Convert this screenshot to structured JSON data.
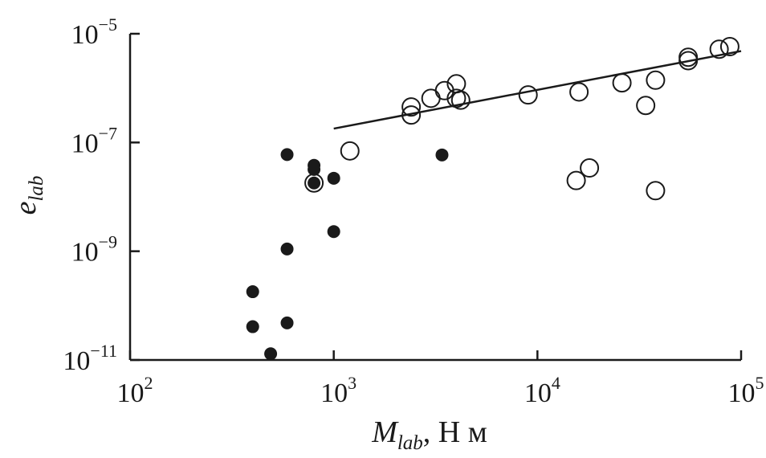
{
  "chart_data": {
    "type": "scatter",
    "title": "",
    "xlabel": {
      "base": "M",
      "sub": "lab",
      "suffix": ", Н м"
    },
    "ylabel": {
      "base": "e",
      "sub": "lab"
    },
    "x_scale": "log",
    "y_scale": "log",
    "xlim": [
      100,
      100000
    ],
    "ylim": [
      1e-11,
      1e-05
    ],
    "x_ticks": [
      {
        "value": 100,
        "base": "10",
        "exp": "2"
      },
      {
        "value": 1000,
        "base": "10",
        "exp": "3"
      },
      {
        "value": 10000,
        "base": "10",
        "exp": "4"
      },
      {
        "value": 100000,
        "base": "10",
        "exp": "5"
      }
    ],
    "y_ticks": [
      {
        "value": 1e-11,
        "base": "10",
        "exp": "−11"
      },
      {
        "value": 1e-09,
        "base": "10",
        "exp": "−9"
      },
      {
        "value": 1e-07,
        "base": "10",
        "exp": "−7"
      },
      {
        "value": 1e-05,
        "base": "10",
        "exp": "−5"
      }
    ],
    "grid": false,
    "colors": {
      "axis": "#1a1a1a",
      "marker": "#1a1a1a",
      "background": "#ffffff"
    },
    "series": [
      {
        "marker": "filled-circle",
        "points": [
          [
            590,
            6e-08
          ],
          [
            800,
            3.8e-08
          ],
          [
            800,
            3.2e-08
          ],
          [
            800,
            1.8e-08
          ],
          [
            1000,
            2.2e-08
          ],
          [
            1000,
            2.3e-09
          ],
          [
            3400,
            5.9e-08
          ],
          [
            590,
            1.1e-09
          ],
          [
            400,
            1.8e-10
          ],
          [
            400,
            4.1e-11
          ],
          [
            590,
            4.8e-11
          ],
          [
            490,
            1.3e-11
          ]
        ]
      },
      {
        "marker": "open-circle",
        "points": [
          [
            800,
            1.8e-08
          ],
          [
            1200,
            7e-08
          ],
          [
            2400,
            4.5e-07
          ],
          [
            2400,
            3.2e-07
          ],
          [
            3000,
            6.5e-07
          ],
          [
            3500,
            9e-07
          ],
          [
            4000,
            1.2e-06
          ],
          [
            4000,
            6.5e-07
          ],
          [
            4200,
            6e-07
          ],
          [
            9000,
            7.5e-07
          ],
          [
            16000,
            8.5e-07
          ],
          [
            26000,
            1.25e-06
          ],
          [
            38000,
            1.4e-06
          ],
          [
            34000,
            4.8e-07
          ],
          [
            55000,
            3.7e-06
          ],
          [
            55000,
            3.2e-06
          ],
          [
            78000,
            5.2e-06
          ],
          [
            88000,
            5.8e-06
          ],
          [
            15500,
            2e-08
          ],
          [
            18000,
            3.4e-08
          ],
          [
            38000,
            1.3e-08
          ]
        ]
      },
      {
        "marker": "line",
        "points": [
          [
            1000,
            1.8e-07
          ],
          [
            100000,
            4.8e-06
          ]
        ]
      }
    ]
  }
}
